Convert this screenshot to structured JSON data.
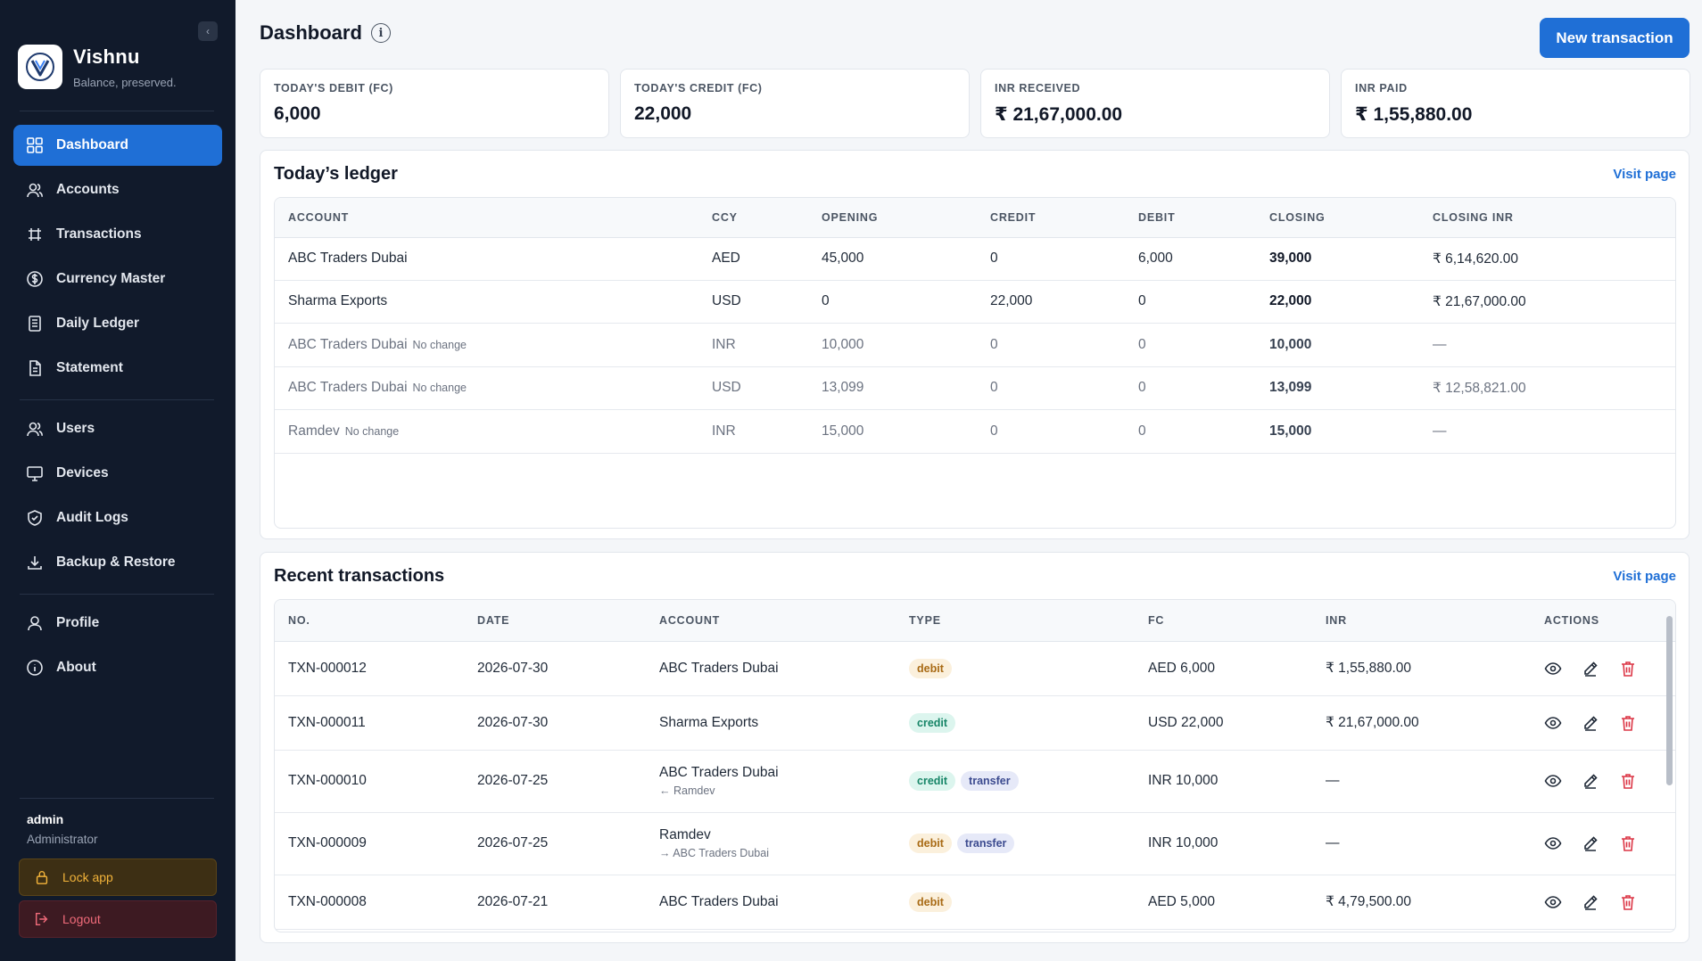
{
  "sidebar": {
    "brand_name": "Vishnu",
    "brand_tagline": "Balance, preserved.",
    "nav": [
      {
        "label": "Dashboard",
        "icon": "dashboard-icon"
      },
      {
        "label": "Accounts",
        "icon": "users-icon"
      },
      {
        "label": "Transactions",
        "icon": "transactions-icon"
      },
      {
        "label": "Currency Master",
        "icon": "dollar-icon"
      },
      {
        "label": "Daily Ledger",
        "icon": "ledger-icon"
      },
      {
        "label": "Statement",
        "icon": "document-icon"
      },
      {
        "label": "Users",
        "icon": "users-icon"
      },
      {
        "label": "Devices",
        "icon": "monitor-icon"
      },
      {
        "label": "Audit Logs",
        "icon": "shield-icon"
      },
      {
        "label": "Backup & Restore",
        "icon": "download-icon"
      },
      {
        "label": "Profile",
        "icon": "user-icon"
      },
      {
        "label": "About",
        "icon": "info-icon"
      }
    ],
    "active": "Dashboard",
    "user_name": "admin",
    "user_role": "Administrator",
    "lock_label": "Lock app",
    "logout_label": "Logout"
  },
  "header": {
    "title": "Dashboard",
    "new_transaction_label": "New transaction"
  },
  "stats": [
    {
      "label": "TODAY'S DEBIT (FC)",
      "value": "6,000"
    },
    {
      "label": "TODAY'S CREDIT (FC)",
      "value": "22,000"
    },
    {
      "label": "INR RECEIVED",
      "value": "₹ 21,67,000.00"
    },
    {
      "label": "INR PAID",
      "value": "₹ 1,55,880.00"
    }
  ],
  "ledger": {
    "title": "Today’s ledger",
    "visit_label": "Visit page",
    "columns": [
      "ACCOUNT",
      "CCY",
      "OPENING",
      "CREDIT",
      "DEBIT",
      "CLOSING",
      "CLOSING INR"
    ],
    "rows": [
      {
        "account": "ABC Traders Dubai",
        "note": "",
        "ccy": "AED",
        "opening": "45,000",
        "credit": "0",
        "debit": "6,000",
        "closing": "39,000",
        "closing_inr": "₹ 6,14,620.00"
      },
      {
        "account": "Sharma Exports",
        "note": "",
        "ccy": "USD",
        "opening": "0",
        "credit": "22,000",
        "debit": "0",
        "closing": "22,000",
        "closing_inr": "₹ 21,67,000.00"
      },
      {
        "account": "ABC Traders Dubai",
        "note": "No change",
        "ccy": "INR",
        "opening": "10,000",
        "credit": "0",
        "debit": "0",
        "closing": "10,000",
        "closing_inr": "—"
      },
      {
        "account": "ABC Traders Dubai",
        "note": "No change",
        "ccy": "USD",
        "opening": "13,099",
        "credit": "0",
        "debit": "0",
        "closing": "13,099",
        "closing_inr": "₹ 12,58,821.00"
      },
      {
        "account": "Ramdev",
        "note": "No change",
        "ccy": "INR",
        "opening": "15,000",
        "credit": "0",
        "debit": "0",
        "closing": "15,000",
        "closing_inr": "—"
      }
    ]
  },
  "recent": {
    "title": "Recent transactions",
    "visit_label": "Visit page",
    "columns": [
      "NO.",
      "DATE",
      "ACCOUNT",
      "TYPE",
      "FC",
      "INR",
      "ACTIONS"
    ],
    "rows": [
      {
        "no": "TXN-000012",
        "date": "2026-07-30",
        "account": "ABC Traders Dubai",
        "sub": "",
        "types": [
          "debit"
        ],
        "fc": "AED 6,000",
        "inr": "₹ 1,55,880.00"
      },
      {
        "no": "TXN-000011",
        "date": "2026-07-30",
        "account": "Sharma Exports",
        "sub": "",
        "types": [
          "credit"
        ],
        "fc": "USD 22,000",
        "inr": "₹ 21,67,000.00"
      },
      {
        "no": "TXN-000010",
        "date": "2026-07-25",
        "account": "ABC Traders Dubai",
        "sub": "← Ramdev",
        "types": [
          "credit",
          "transfer"
        ],
        "fc": "INR 10,000",
        "inr": "—"
      },
      {
        "no": "TXN-000009",
        "date": "2026-07-25",
        "account": "Ramdev",
        "sub": "→ ABC Traders Dubai",
        "types": [
          "debit",
          "transfer"
        ],
        "fc": "INR 10,000",
        "inr": "—"
      },
      {
        "no": "TXN-000008",
        "date": "2026-07-21",
        "account": "ABC Traders Dubai",
        "sub": "",
        "types": [
          "debit"
        ],
        "fc": "AED 5,000",
        "inr": "₹ 4,79,500.00"
      }
    ]
  },
  "colors": {
    "sidebar_bg": "#111a2b",
    "accent": "#1f6fd6",
    "debit": "#a86a14",
    "credit": "#168567",
    "transfer": "#3b4a8f",
    "delete": "#dc3545"
  }
}
